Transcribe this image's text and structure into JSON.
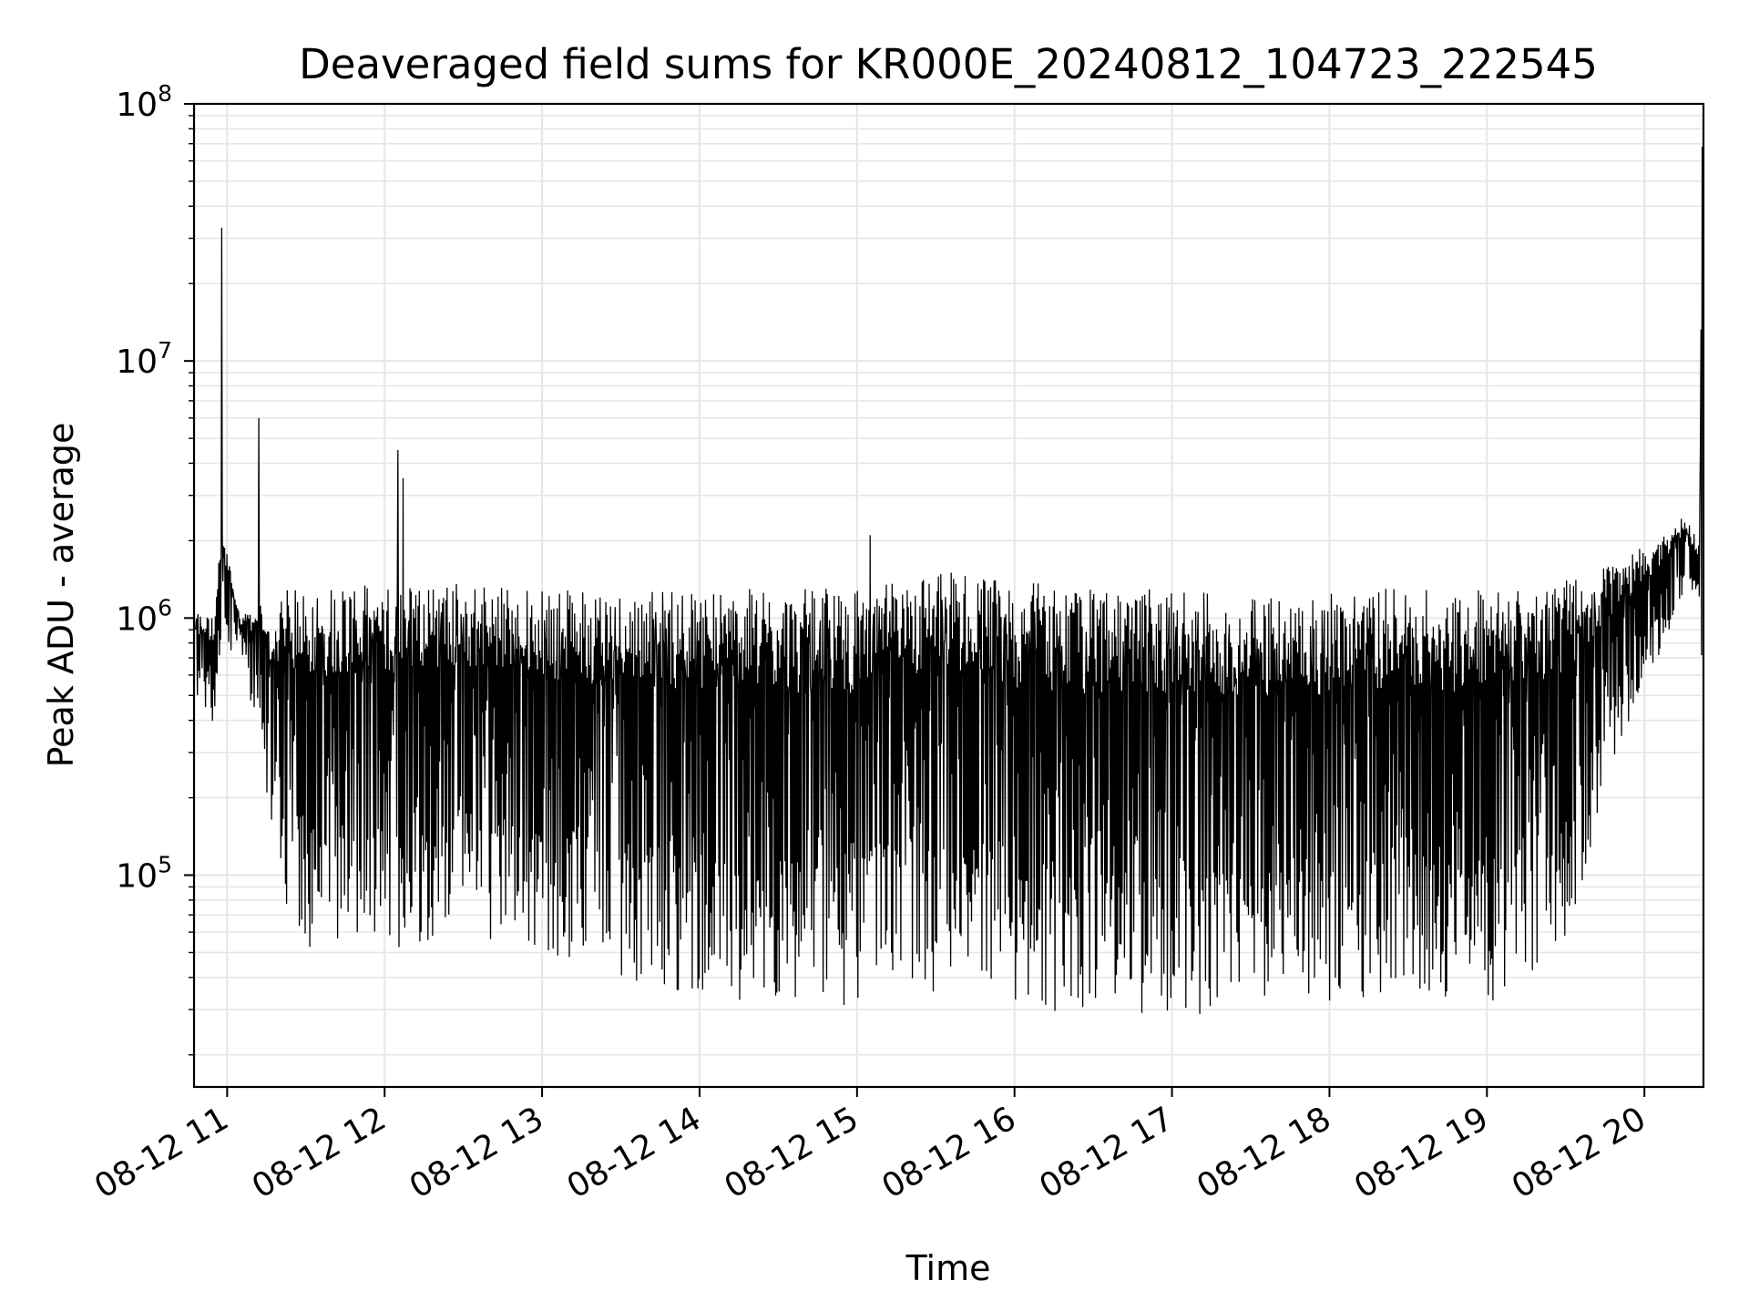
{
  "chart_data": {
    "type": "line",
    "title": "Deaveraged field sums for KR000E_20240812_104723_222545",
    "xlabel": "Time",
    "ylabel": "Peak ADU - average",
    "yscale": "log",
    "ylim": [
      15000,
      100000000
    ],
    "xlim": [
      "2024-08-12 10:47:23",
      "2024-08-12 20:22:30"
    ],
    "grid": true,
    "line_color": "#000000",
    "grid_color": "#e6e6e6",
    "x_ticks": [
      "08-12 11",
      "08-12 12",
      "08-12 13",
      "08-12 14",
      "08-12 15",
      "08-12 16",
      "08-12 17",
      "08-12 18",
      "08-12 19",
      "08-12 20"
    ],
    "y_ticks": [
      {
        "base": "10",
        "exp": "5"
      },
      {
        "base": "10",
        "exp": "6"
      },
      {
        "base": "10",
        "exp": "7"
      },
      {
        "base": "10",
        "exp": "8"
      }
    ],
    "series": [
      {
        "x": [
          "2024-08-12 10:48",
          "2024-08-12 10:55",
          "2024-08-12 10:58",
          "2024-08-12 11:05",
          "2024-08-12 11:12",
          "2024-08-12 11:15",
          "2024-08-12 11:22",
          "2024-08-12 11:30",
          "2024-08-12 11:45",
          "2024-08-12 12:00",
          "2024-08-12 12:05",
          "2024-08-12 12:30",
          "2024-08-12 13:00",
          "2024-08-12 13:30",
          "2024-08-12 13:55",
          "2024-08-12 14:30",
          "2024-08-12 15:00",
          "2024-08-12 15:05",
          "2024-08-12 15:30",
          "2024-08-12 16:00",
          "2024-08-12 16:30",
          "2024-08-12 17:00",
          "2024-08-12 17:30",
          "2024-08-12 18:00",
          "2024-08-12 18:30",
          "2024-08-12 19:00",
          "2024-08-12 19:30",
          "2024-08-12 19:50",
          "2024-08-12 20:05",
          "2024-08-12 20:15",
          "2024-08-12 20:21",
          "2024-08-12 20:22"
        ],
        "low": [
          350000,
          400000,
          700000,
          800000,
          300000,
          200000,
          80000,
          50000,
          50000,
          50000,
          50000,
          60000,
          50000,
          40000,
          35000,
          30000,
          30000,
          40000,
          30000,
          30000,
          28000,
          28000,
          30000,
          30000,
          35000,
          30000,
          50000,
          300000,
          700000,
          1200000,
          1100000,
          400000
        ],
        "high": [
          1100000,
          1000000,
          2300000,
          1000000,
          1200000,
          900000,
          1300000,
          1300000,
          1400000,
          1300000,
          1400000,
          1400000,
          1300000,
          1300000,
          1300000,
          1300000,
          1300000,
          1300000,
          1600000,
          1400000,
          1300000,
          1300000,
          1200000,
          1300000,
          1300000,
          1300000,
          1400000,
          1700000,
          2000000,
          2500000,
          2000000,
          68000000
        ],
        "spikes": [
          {
            "x": "2024-08-12 10:58",
            "y": 33000000
          },
          {
            "x": "2024-08-12 11:12",
            "y": 6000000
          },
          {
            "x": "2024-08-12 12:05",
            "y": 4500000
          },
          {
            "x": "2024-08-12 12:07",
            "y": 3500000
          },
          {
            "x": "2024-08-12 15:05",
            "y": 2100000
          },
          {
            "x": "2024-08-12 20:22",
            "y": 68000000
          }
        ]
      }
    ]
  }
}
